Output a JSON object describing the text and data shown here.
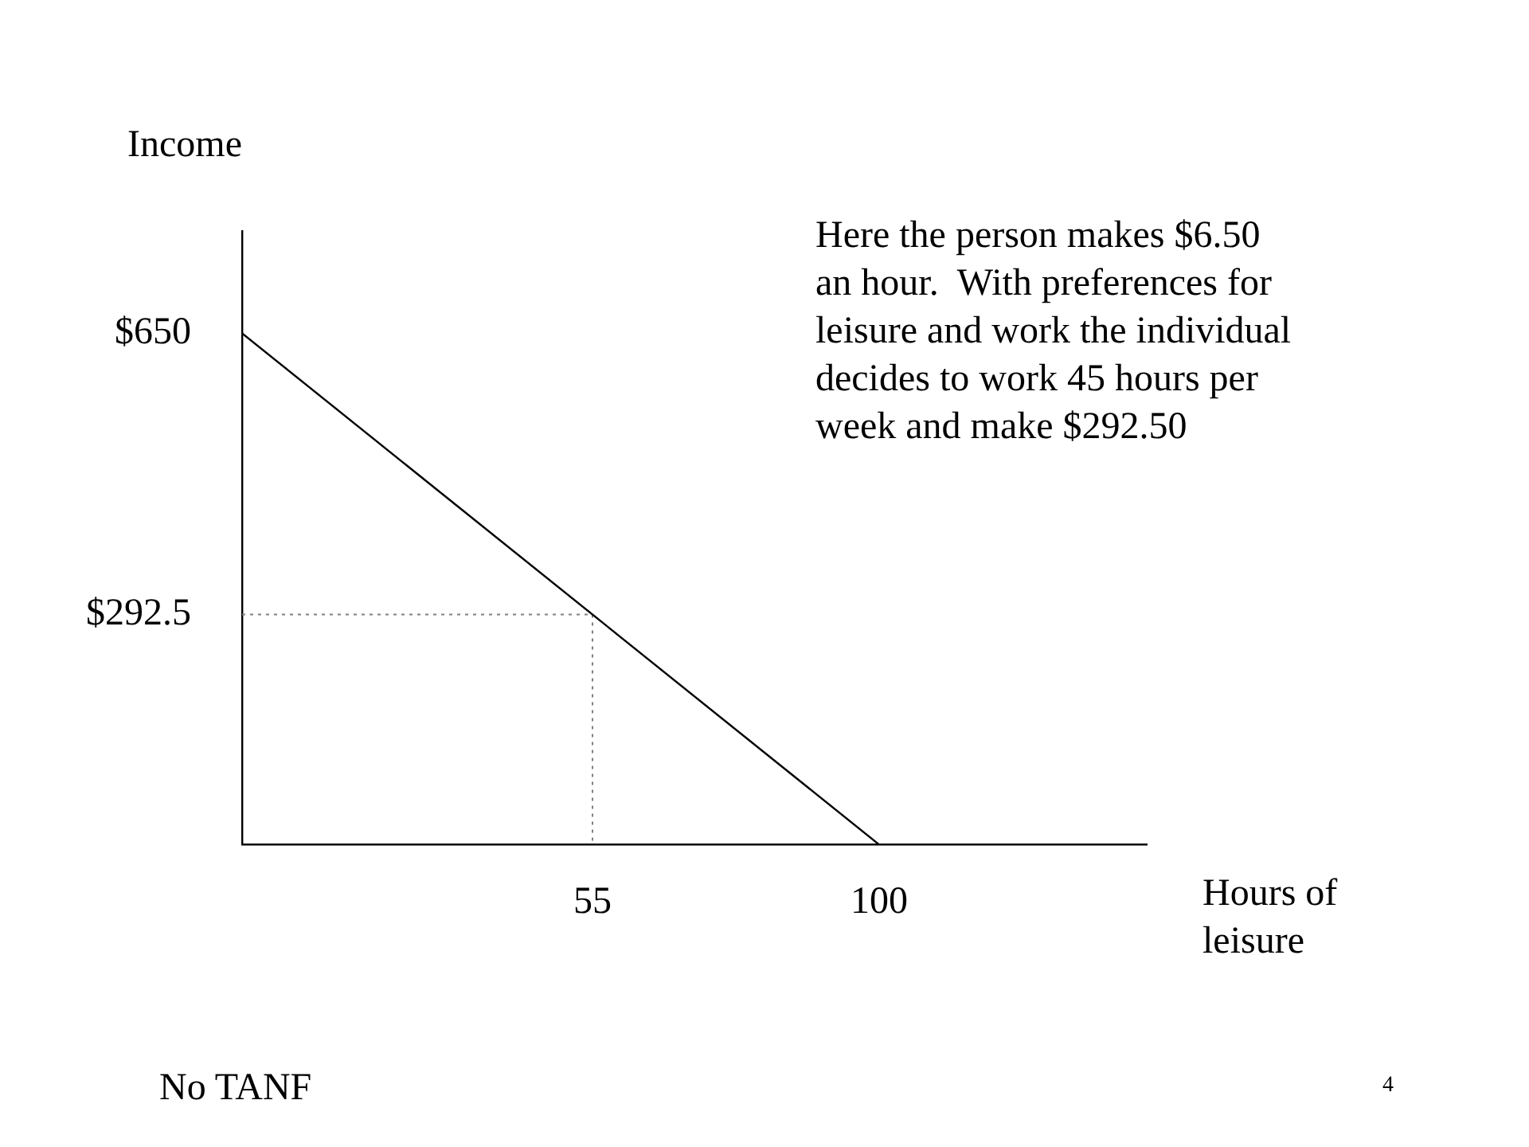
{
  "chart_data": {
    "type": "line",
    "xlabel": "Hours of leisure",
    "ylabel": "Income",
    "annotations": [
      "Here the person makes $6.50 an hour.  With preferences for leisure and work the individual decides to work 45 hours per week and make $292.50",
      "No TANF",
      "4"
    ],
    "series": [
      {
        "x": [
          0,
          100
        ],
        "values": [
          650,
          0
        ],
        "color": "#000000",
        "line_style": "solid"
      },
      {
        "x": [
          0,
          55,
          55
        ],
        "values": [
          292.5,
          292.5,
          0
        ],
        "color": "#808080",
        "line_style": "dotted"
      }
    ],
    "xlim": [
      0,
      142
    ],
    "ylim": [
      0,
      780
    ],
    "xticks": [
      {
        "value": 55,
        "label": "55"
      },
      {
        "value": 100,
        "label": "100"
      }
    ],
    "yticks": [
      {
        "value": 292.5,
        "label": "$292.5"
      },
      {
        "value": 650,
        "label": "$650"
      }
    ],
    "marker": "none"
  }
}
